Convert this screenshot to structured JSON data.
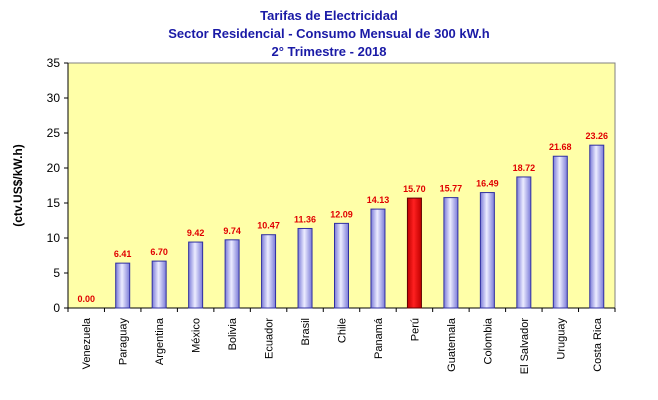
{
  "chart_data": {
    "type": "bar",
    "title": "Tarifas de Electricidad",
    "subtitle": "Sector Residencial - Consumo Mensual de 300 kW.h",
    "period": "2° Trimestre - 2018",
    "ylabel": "(ctv.US$/kW.h)",
    "xlabel": "",
    "ylim": [
      0,
      35
    ],
    "yticks": [
      0,
      5,
      10,
      15,
      20,
      25,
      30,
      35
    ],
    "categories": [
      "Venezuela",
      "Paraguay",
      "Argentina",
      "México",
      "Bolivia",
      "Ecuador",
      "Brasil",
      "Chile",
      "Panamá",
      "Perú",
      "Guatemala",
      "Colombia",
      "El Salvador",
      "Uruguay",
      "Costa Rica"
    ],
    "values": [
      0.0,
      6.41,
      6.7,
      9.42,
      9.74,
      10.47,
      11.36,
      12.09,
      14.13,
      15.7,
      15.77,
      16.49,
      18.72,
      21.68,
      23.26
    ],
    "value_labels": [
      "0.00",
      "6.41",
      "6.70",
      "9.42",
      "9.74",
      "10.47",
      "11.36",
      "12.09",
      "14.13",
      "15.70",
      "15.77",
      "16.49",
      "18.72",
      "21.68",
      "23.26"
    ],
    "highlight_category": "Perú",
    "grid": false,
    "colors": {
      "plot_background": "#ffffa8",
      "bar": "#c8c8f0",
      "bar_edge": "#3030a0",
      "highlight_bar": "#e00000",
      "data_label": "#e00000",
      "title": "#1a1aa6"
    }
  }
}
